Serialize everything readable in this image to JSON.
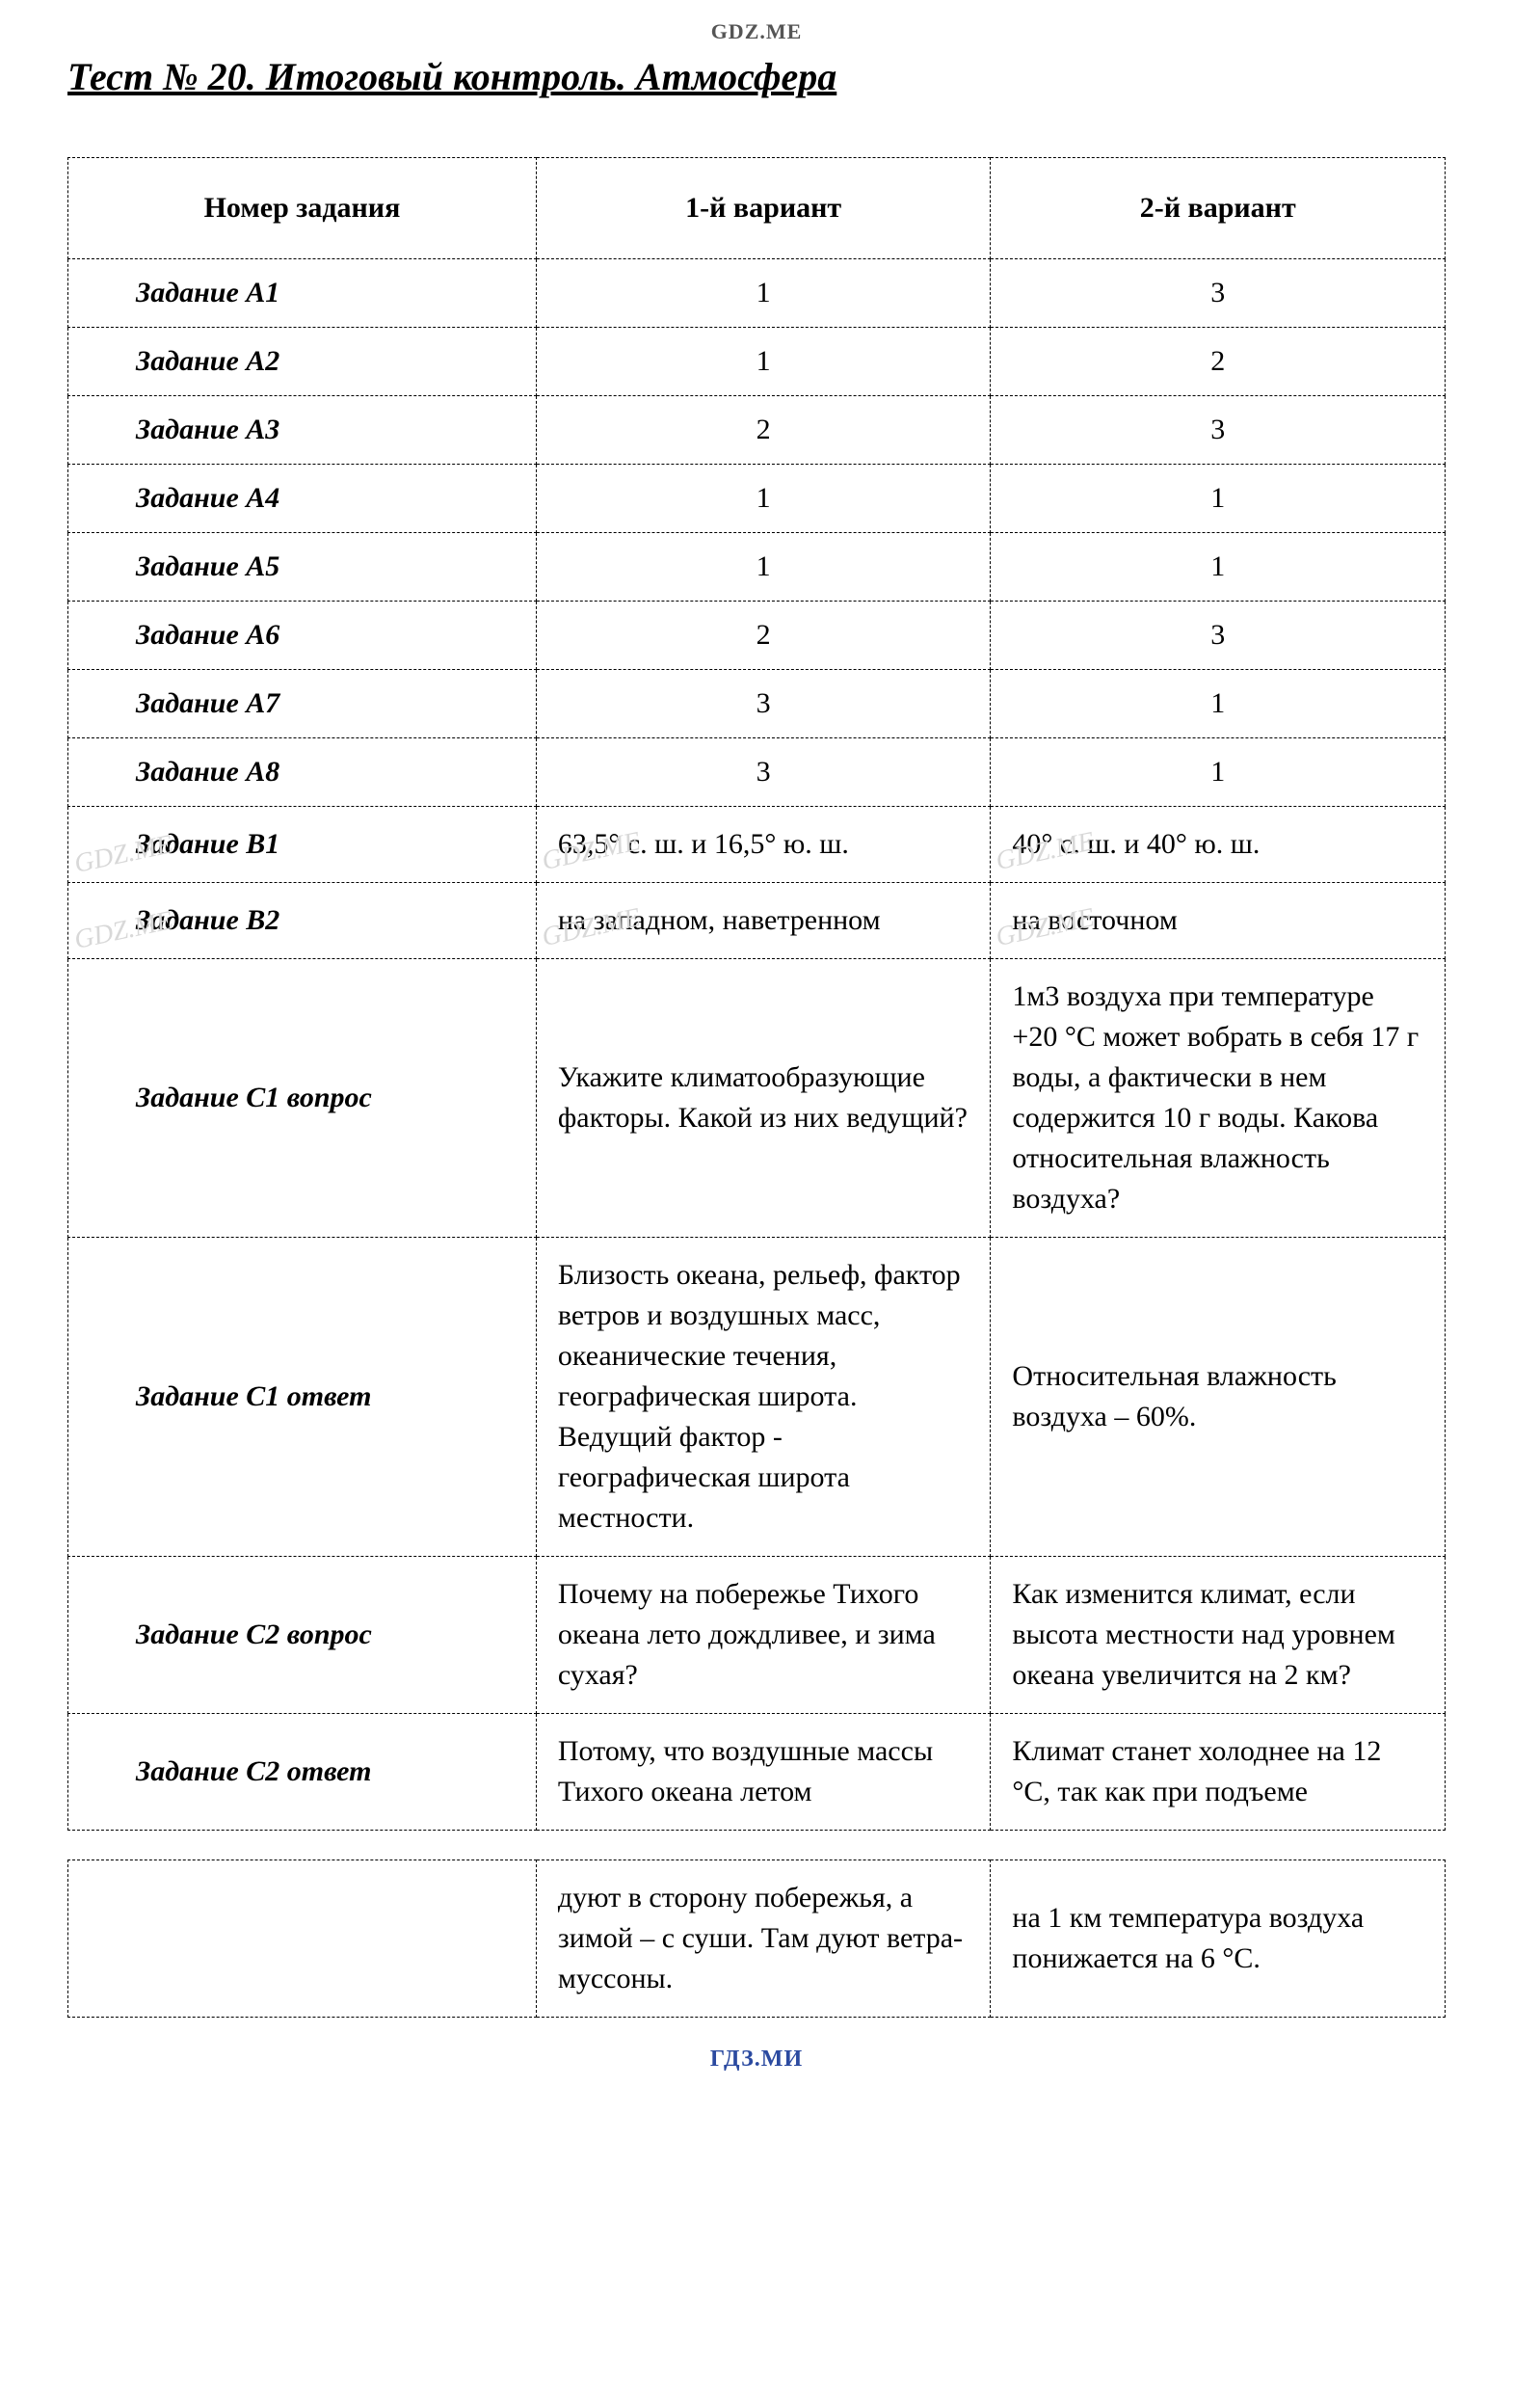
{
  "watermarks": {
    "top": "GDZ.ME",
    "bottom": "ГДЗ.МИ",
    "diagonal": "GDZ.ME"
  },
  "title": "Тест № 20.  Итоговый контроль. Атмосфера",
  "table": {
    "columns": [
      "Номер задания",
      "1-й вариант",
      "2-й вариант"
    ],
    "column_widths_pct": [
      34,
      33,
      33
    ],
    "header_fontsize_pt": 30,
    "cell_fontsize_pt": 30,
    "border_style": "dashed",
    "border_color": "#000000",
    "rows": [
      {
        "label": "Задание A1",
        "v1": "1",
        "v2": "3",
        "centered": true
      },
      {
        "label": "Задание A2",
        "v1": "1",
        "v2": "2",
        "centered": true
      },
      {
        "label": "Задание A3",
        "v1": "2",
        "v2": "3",
        "centered": true
      },
      {
        "label": "Задание A4",
        "v1": "1",
        "v2": "1",
        "centered": true
      },
      {
        "label": "Задание A5",
        "v1": "1",
        "v2": "1",
        "centered": true
      },
      {
        "label": "Задание A6",
        "v1": "2",
        "v2": "3",
        "centered": true
      },
      {
        "label": "Задание A7",
        "v1": "3",
        "v2": "1",
        "centered": true
      },
      {
        "label": "Задание A8",
        "v1": "3",
        "v2": "1",
        "centered": true
      },
      {
        "label": "Задание B1",
        "v1": "63,5° с. ш. и 16,5° ю. ш.",
        "v2": "40° с. ш. и 40° ю. ш.",
        "centered": false,
        "wm": true
      },
      {
        "label": "Задание B2",
        "v1": "на западном, наветренном",
        "v2": "на восточном",
        "centered": false,
        "wm": true
      },
      {
        "label": "Задание C1 вопрос",
        "v1": "Укажите климатообразующие факторы. Какой из них ведущий?",
        "v2": "1м3 воздуха при температуре +20 °C может вобрать в себя 17 г воды, а фактически в нем содержится 10 г воды. Какова относительная влажность воздуха?",
        "centered": false
      },
      {
        "label": "Задание C1 ответ",
        "v1": "Близость океана, рельеф, фактор ветров и воздушных масс, океанические течения, географическая широта. Ведущий фактор - географическая широта местности.",
        "v2": "Относительная влажность воздуха – 60%.",
        "centered": false
      },
      {
        "label": "Задание C2 вопрос",
        "v1": "Почему на побережье Тихого океана лето дождливее, и зима сухая?",
        "v2": "Как изменится климат, если высота местности над уровнем океана увеличится на 2 км?",
        "centered": false
      },
      {
        "label": "Задание C2 ответ",
        "v1": "Потому, что воздушные массы Тихого океана летом",
        "v2": "Климат станет холоднее на 12 °C, так как при подъеме",
        "centered": false
      }
    ]
  },
  "continuation_table": {
    "rows": [
      {
        "label": "",
        "v1": "дуют в сторону побережья, а зимой – с  суши. Там дуют ветра-муссоны.",
        "v2": "на 1 км температура воздуха понижается на 6 °C."
      }
    ]
  },
  "colors": {
    "text": "#000000",
    "background": "#ffffff",
    "watermark_top": "#555555",
    "watermark_bottom": "#2b4aa0",
    "watermark_diagonal": "#d8d8d8"
  },
  "typography": {
    "title_fontsize_pt": 40,
    "title_style": "bold italic underline",
    "body_font": "Times New Roman"
  }
}
